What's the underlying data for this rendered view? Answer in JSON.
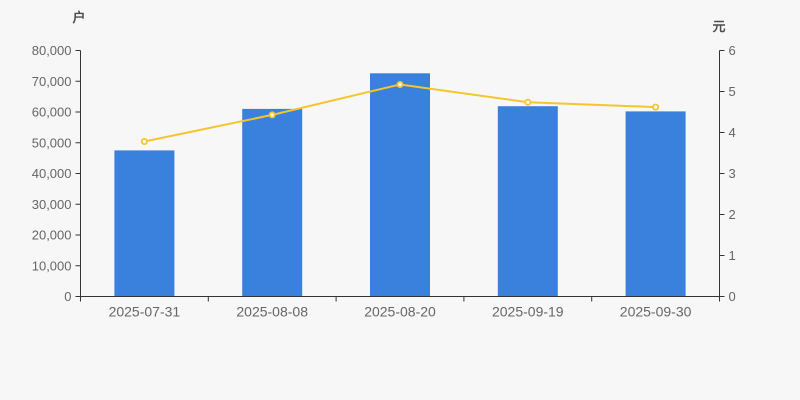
{
  "chart": {
    "background": "#f7f7f7",
    "bar_color": "#3a80dd",
    "line_color": "#f6c42d",
    "marker_fill": "#ffffff",
    "axis_color": "#333333",
    "tick_label_color": "#666666",
    "axis_title_color": "#4c4c4c"
  },
  "chart_data": {
    "type": "bar",
    "subtype": "dual-axis-bar-with-line-overlay",
    "categories": [
      "2025-07-31",
      "2025-08-08",
      "2025-08-20",
      "2025-09-19",
      "2025-09-30"
    ],
    "series": [
      {
        "type": "bar",
        "axis": "left",
        "values": [
          47500,
          61000,
          72600,
          61900,
          60200
        ]
      },
      {
        "type": "line",
        "axis": "right",
        "values": [
          3.78,
          4.43,
          5.17,
          4.74,
          4.62
        ]
      }
    ],
    "left_axis": {
      "title": "户",
      "min": 0,
      "max": 80000,
      "tick_interval": 10000,
      "tick_labels": [
        "0",
        "10,000",
        "20,000",
        "30,000",
        "40,000",
        "50,000",
        "60,000",
        "70,000",
        "80,000"
      ]
    },
    "right_axis": {
      "title": "元",
      "min": 0,
      "max": 6,
      "tick_interval": 1,
      "tick_labels": [
        "0",
        "1",
        "2",
        "3",
        "4",
        "5",
        "6"
      ]
    },
    "grid": false,
    "legend_position": "none"
  }
}
